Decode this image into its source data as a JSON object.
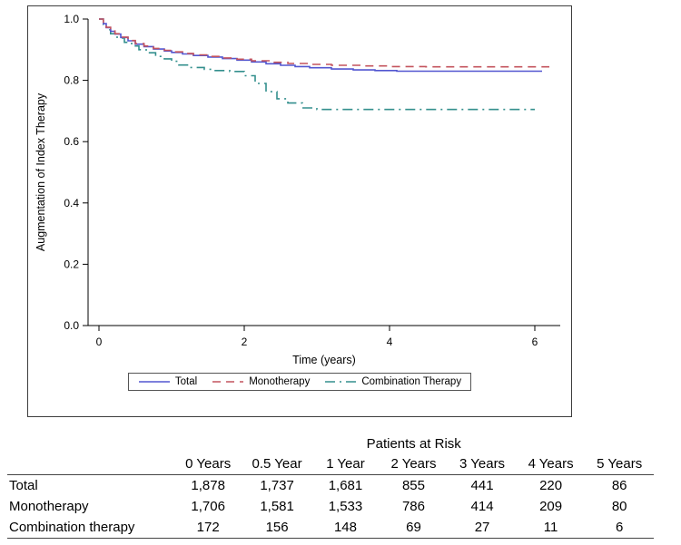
{
  "chart_data": {
    "type": "line",
    "subtype": "kaplan-meier-step",
    "title": "",
    "xlabel": "Time (years)",
    "ylabel": "Augmentation of Index Therapy",
    "xlim": [
      -0.2,
      6.3
    ],
    "ylim": [
      0.0,
      1.0
    ],
    "x_ticks": [
      0,
      2,
      4,
      6
    ],
    "y_ticks": [
      0.0,
      0.2,
      0.4,
      0.6,
      0.8,
      1.0
    ],
    "grid": false,
    "legend_position": "bottom-center-boxed",
    "series": [
      {
        "name": "Total",
        "color": "#5256d0",
        "dash": "solid",
        "x": [
          0,
          0.06,
          0.1,
          0.16,
          0.22,
          0.3,
          0.4,
          0.5,
          0.62,
          0.75,
          0.9,
          1.0,
          1.15,
          1.3,
          1.5,
          1.7,
          1.9,
          2.1,
          2.3,
          2.5,
          2.7,
          2.9,
          3.2,
          3.5,
          3.8,
          4.1,
          6.1
        ],
        "y": [
          1.0,
          0.985,
          0.972,
          0.96,
          0.951,
          0.94,
          0.929,
          0.918,
          0.91,
          0.902,
          0.896,
          0.891,
          0.886,
          0.881,
          0.876,
          0.871,
          0.866,
          0.86,
          0.854,
          0.849,
          0.845,
          0.841,
          0.837,
          0.834,
          0.832,
          0.83,
          0.83
        ]
      },
      {
        "name": "Monotherapy",
        "color": "#c4545e",
        "dash": "dashed",
        "x": [
          0,
          0.06,
          0.1,
          0.16,
          0.22,
          0.3,
          0.4,
          0.5,
          0.62,
          0.75,
          0.9,
          1.0,
          1.15,
          1.3,
          1.5,
          1.7,
          1.9,
          2.1,
          2.35,
          2.6,
          2.9,
          3.2,
          3.6,
          4.0,
          4.5,
          6.2
        ],
        "y": [
          1.0,
          0.986,
          0.973,
          0.961,
          0.952,
          0.941,
          0.93,
          0.92,
          0.912,
          0.904,
          0.898,
          0.893,
          0.888,
          0.883,
          0.878,
          0.873,
          0.869,
          0.864,
          0.859,
          0.855,
          0.852,
          0.849,
          0.847,
          0.845,
          0.844,
          0.844
        ]
      },
      {
        "name": "Combination Therapy",
        "color": "#338f8d",
        "dash": "dashdot",
        "x": [
          0,
          0.06,
          0.1,
          0.16,
          0.25,
          0.35,
          0.45,
          0.55,
          0.65,
          0.78,
          0.9,
          1.0,
          1.1,
          1.25,
          1.45,
          1.6,
          1.8,
          2.0,
          2.15,
          2.3,
          2.45,
          2.6,
          2.8,
          3.0,
          6.0
        ],
        "y": [
          1.0,
          0.982,
          0.965,
          0.952,
          0.938,
          0.924,
          0.912,
          0.9,
          0.89,
          0.878,
          0.87,
          0.862,
          0.85,
          0.842,
          0.836,
          0.832,
          0.829,
          0.815,
          0.79,
          0.763,
          0.74,
          0.726,
          0.71,
          0.705,
          0.705
        ]
      }
    ]
  },
  "risk_table": {
    "title": "Patients at Risk",
    "columns": [
      "0 Years",
      "0.5 Year",
      "1 Year",
      "2 Years",
      "3 Years",
      "4 Years",
      "5 Years"
    ],
    "rows": [
      {
        "label": "Total",
        "values": [
          "1,878",
          "1,737",
          "1,681",
          "855",
          "441",
          "220",
          "86"
        ]
      },
      {
        "label": "Monotherapy",
        "values": [
          "1,706",
          "1,581",
          "1,533",
          "786",
          "414",
          "209",
          "80"
        ]
      },
      {
        "label": "Combination therapy",
        "values": [
          "172",
          "156",
          "148",
          "69",
          "27",
          "11",
          "6"
        ]
      }
    ]
  }
}
